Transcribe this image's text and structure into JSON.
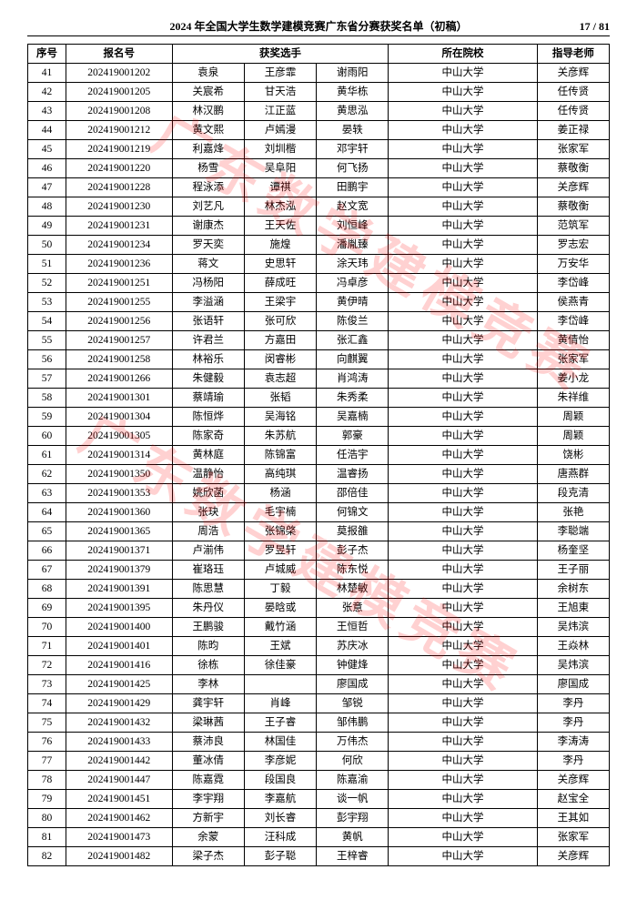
{
  "header": {
    "title": "2024 年全国大学生数学建模竞赛广东省分赛获奖名单（初稿）",
    "page_label": "17 / 81"
  },
  "watermark": "广东数学建模竞赛",
  "columns": {
    "idx": "序号",
    "reg": "报名号",
    "members": "获奖选手",
    "school": "所在院校",
    "teacher": "指导老师"
  },
  "rows": [
    {
      "idx": 41,
      "reg": "202419001202",
      "m": [
        "袁泉",
        "王彦霏",
        "谢雨阳"
      ],
      "school": "中山大学",
      "teacher": "关彦辉"
    },
    {
      "idx": 42,
      "reg": "202419001205",
      "m": [
        "关宸希",
        "甘天浩",
        "黄华栋"
      ],
      "school": "中山大学",
      "teacher": "任传贤"
    },
    {
      "idx": 43,
      "reg": "202419001208",
      "m": [
        "林汉鹏",
        "江正蓝",
        "黄思泓"
      ],
      "school": "中山大学",
      "teacher": "任传贤"
    },
    {
      "idx": 44,
      "reg": "202419001212",
      "m": [
        "黄文熙",
        "卢嫣漫",
        "晏轶"
      ],
      "school": "中山大学",
      "teacher": "姜正禄"
    },
    {
      "idx": 45,
      "reg": "202419001219",
      "m": [
        "利嘉烽",
        "刘圳楷",
        "邓宇轩"
      ],
      "school": "中山大学",
      "teacher": "张家军"
    },
    {
      "idx": 46,
      "reg": "202419001220",
      "m": [
        "杨雪",
        "吴阜阳",
        "何飞扬"
      ],
      "school": "中山大学",
      "teacher": "蔡敬衡"
    },
    {
      "idx": 47,
      "reg": "202419001228",
      "m": [
        "程泳添",
        "谭祺",
        "田鹏宇"
      ],
      "school": "中山大学",
      "teacher": "关彦辉"
    },
    {
      "idx": 48,
      "reg": "202419001230",
      "m": [
        "刘艺凡",
        "林杰泓",
        "赵文宽"
      ],
      "school": "中山大学",
      "teacher": "蔡敬衡"
    },
    {
      "idx": 49,
      "reg": "202419001231",
      "m": [
        "谢康杰",
        "王天佐",
        "刘恒峰"
      ],
      "school": "中山大学",
      "teacher": "范筑军"
    },
    {
      "idx": 50,
      "reg": "202419001234",
      "m": [
        "罗天奕",
        "施煌",
        "潘胤臻"
      ],
      "school": "中山大学",
      "teacher": "罗志宏"
    },
    {
      "idx": 51,
      "reg": "202419001236",
      "m": [
        "蒋文",
        "史思轩",
        "涂天玮"
      ],
      "school": "中山大学",
      "teacher": "万安华"
    },
    {
      "idx": 52,
      "reg": "202419001251",
      "m": [
        "冯杨阳",
        "薛成旺",
        "冯卓彦"
      ],
      "school": "中山大学",
      "teacher": "李岱峰"
    },
    {
      "idx": 53,
      "reg": "202419001255",
      "m": [
        "李溢涵",
        "王梁宇",
        "黄伊晴"
      ],
      "school": "中山大学",
      "teacher": "侯燕青"
    },
    {
      "idx": 54,
      "reg": "202419001256",
      "m": [
        "张语轩",
        "张可欣",
        "陈俊兰"
      ],
      "school": "中山大学",
      "teacher": "李岱峰"
    },
    {
      "idx": 55,
      "reg": "202419001257",
      "m": [
        "许君兰",
        "方嘉田",
        "张汇鑫"
      ],
      "school": "中山大学",
      "teacher": "黄倩怡"
    },
    {
      "idx": 56,
      "reg": "202419001258",
      "m": [
        "林裕乐",
        "闵睿彬",
        "向麒翼"
      ],
      "school": "中山大学",
      "teacher": "张家军"
    },
    {
      "idx": 57,
      "reg": "202419001266",
      "m": [
        "朱健毅",
        "袁志超",
        "肖鸿涛"
      ],
      "school": "中山大学",
      "teacher": "姜小龙"
    },
    {
      "idx": 58,
      "reg": "202419001301",
      "m": [
        "蔡靖瑜",
        "张韬",
        "朱秀柔"
      ],
      "school": "中山大学",
      "teacher": "朱祥维"
    },
    {
      "idx": 59,
      "reg": "202419001304",
      "m": [
        "陈恒烨",
        "吴海铭",
        "吴嘉楠"
      ],
      "school": "中山大学",
      "teacher": "周颖"
    },
    {
      "idx": 60,
      "reg": "202419001305",
      "m": [
        "陈家奇",
        "朱苏航",
        "郭豪"
      ],
      "school": "中山大学",
      "teacher": "周颖"
    },
    {
      "idx": 61,
      "reg": "202419001314",
      "m": [
        "黄林庭",
        "陈锦富",
        "任浩宇"
      ],
      "school": "中山大学",
      "teacher": "饶彬"
    },
    {
      "idx": 62,
      "reg": "202419001350",
      "m": [
        "温静怡",
        "高纯琪",
        "温睿扬"
      ],
      "school": "中山大学",
      "teacher": "唐燕群"
    },
    {
      "idx": 63,
      "reg": "202419001353",
      "m": [
        "姚欣菡",
        "杨涵",
        "邵倍佳"
      ],
      "school": "中山大学",
      "teacher": "段克清"
    },
    {
      "idx": 64,
      "reg": "202419001360",
      "m": [
        "张玦",
        "毛宇楠",
        "何锦文"
      ],
      "school": "中山大学",
      "teacher": "张艳"
    },
    {
      "idx": 65,
      "reg": "202419001365",
      "m": [
        "周浩",
        "张锦棨",
        "莫报雒"
      ],
      "school": "中山大学",
      "teacher": "李聪端"
    },
    {
      "idx": 66,
      "reg": "202419001371",
      "m": [
        "卢湔伟",
        "罗昱轩",
        "彭子杰"
      ],
      "school": "中山大学",
      "teacher": "杨奎坚"
    },
    {
      "idx": 67,
      "reg": "202419001379",
      "m": [
        "崔珞珏",
        "卢城威",
        "陈东悦"
      ],
      "school": "中山大学",
      "teacher": "王子丽"
    },
    {
      "idx": 68,
      "reg": "202419001391",
      "m": [
        "陈思慧",
        "丁毅",
        "林楚敏"
      ],
      "school": "中山大学",
      "teacher": "余树东"
    },
    {
      "idx": 69,
      "reg": "202419001395",
      "m": [
        "朱丹仪",
        "晏晗或",
        "张意"
      ],
      "school": "中山大学",
      "teacher": "王旭東"
    },
    {
      "idx": 70,
      "reg": "202419001400",
      "m": [
        "王鹏骏",
        "戴竹涵",
        "王恒哲"
      ],
      "school": "中山大学",
      "teacher": "吴炜滨"
    },
    {
      "idx": 71,
      "reg": "202419001401",
      "m": [
        "陈昀",
        "王斌",
        "苏庆冰"
      ],
      "school": "中山大学",
      "teacher": "王焱林"
    },
    {
      "idx": 72,
      "reg": "202419001416",
      "m": [
        "徐栋",
        "徐佳豪",
        "钟健烽"
      ],
      "school": "中山大学",
      "teacher": "吴炜滨"
    },
    {
      "idx": 73,
      "reg": "202419001425",
      "m": [
        "李林",
        "",
        "廖国成"
      ],
      "school": "中山大学",
      "teacher": "廖国成"
    },
    {
      "idx": 74,
      "reg": "202419001429",
      "m": [
        "龚宇轩",
        "肖峰",
        "邹锐"
      ],
      "school": "中山大学",
      "teacher": "李丹"
    },
    {
      "idx": 75,
      "reg": "202419001432",
      "m": [
        "梁琳茜",
        "王子睿",
        "邹伟鹏"
      ],
      "school": "中山大学",
      "teacher": "李丹"
    },
    {
      "idx": 76,
      "reg": "202419001433",
      "m": [
        "蔡沛良",
        "林国佳",
        "万伟杰"
      ],
      "school": "中山大学",
      "teacher": "李涛涛"
    },
    {
      "idx": 77,
      "reg": "202419001442",
      "m": [
        "董冰倩",
        "李彦妮",
        "何欣"
      ],
      "school": "中山大学",
      "teacher": "李丹"
    },
    {
      "idx": 78,
      "reg": "202419001447",
      "m": [
        "陈嘉霓",
        "段国良",
        "陈嘉渝"
      ],
      "school": "中山大学",
      "teacher": "关彦辉"
    },
    {
      "idx": 79,
      "reg": "202419001451",
      "m": [
        "李宇翔",
        "李嘉航",
        "谈一帆"
      ],
      "school": "中山大学",
      "teacher": "赵宝全"
    },
    {
      "idx": 80,
      "reg": "202419001462",
      "m": [
        "方新宇",
        "刘长睿",
        "彭宇翔"
      ],
      "school": "中山大学",
      "teacher": "王其如"
    },
    {
      "idx": 81,
      "reg": "202419001473",
      "m": [
        "余蒙",
        "汪科成",
        "黄帆"
      ],
      "school": "中山大学",
      "teacher": "张家军"
    },
    {
      "idx": 82,
      "reg": "202419001482",
      "m": [
        "梁子杰",
        "彭子聪",
        "王梓睿"
      ],
      "school": "中山大学",
      "teacher": "关彦辉"
    }
  ]
}
